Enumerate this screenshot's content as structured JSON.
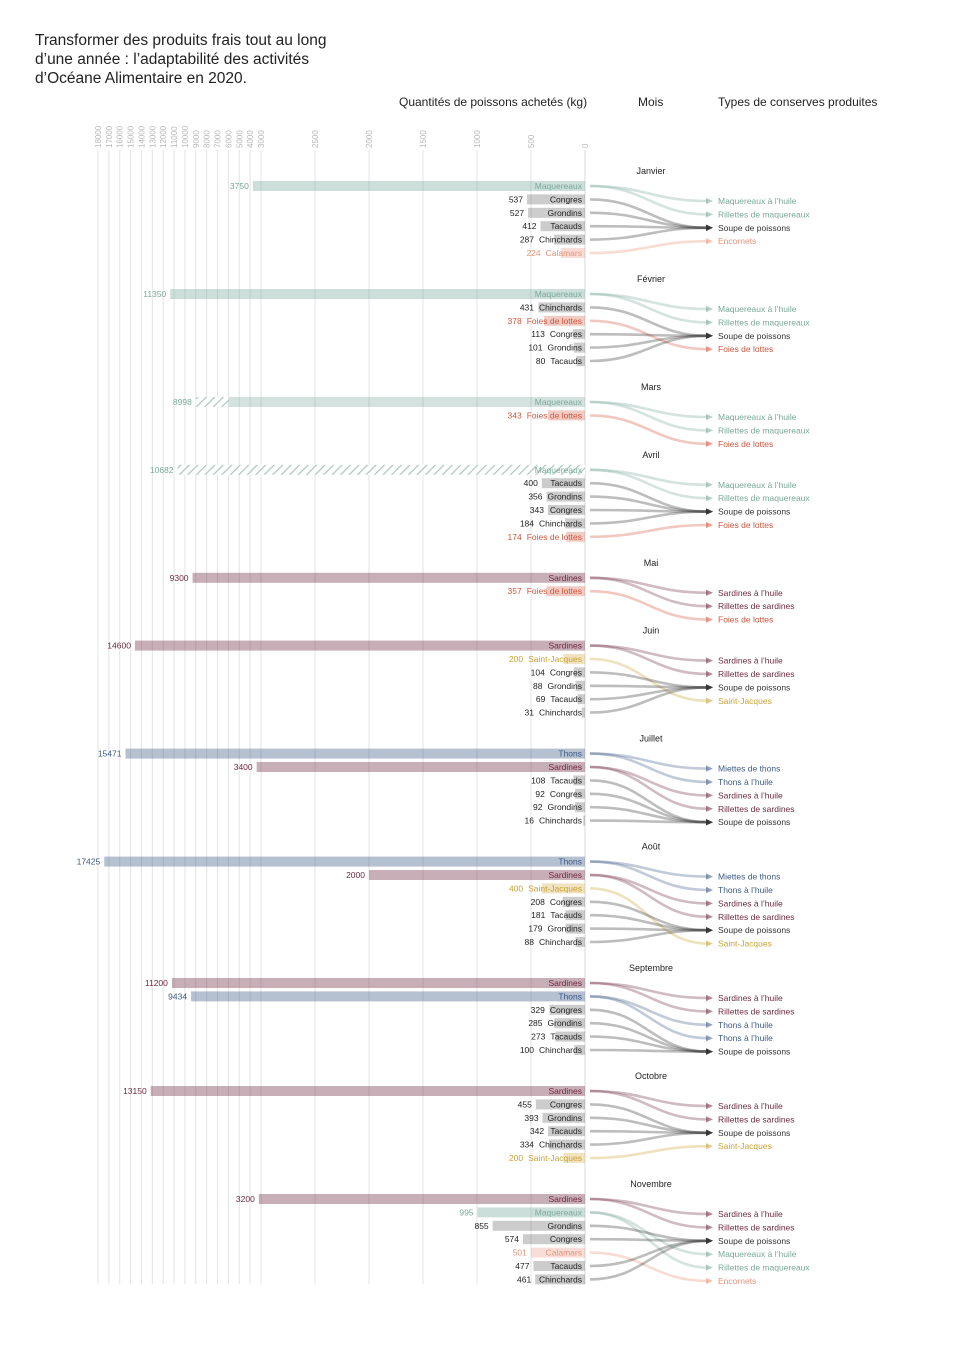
{
  "title": "Transformer des produits frais tout au long d’une année : l’adaptabilité des activités d’Océane Alimentaire en 2020.",
  "headers": {
    "quantities": "Quantités de poissons achetés (kg)",
    "month": "Mois",
    "products": "Types de conserves produites"
  },
  "colors": {
    "Maquereaux": "#7aa89a",
    "Sardines": "#6e2a40",
    "Thons": "#3d5a86",
    "Foies de lottes": "#d2553a",
    "Calamars": "#e8937a",
    "Saint-Jacques": "#c9a233",
    "other": "#333333"
  },
  "chart_data": {
    "type": "bar",
    "orientation": "horizontal-leftward",
    "xlabel": "Quantités de poissons achetés (kg)",
    "scale_note": "linear 0–3000 kg, compressed 3000–18000 kg",
    "ticks": [
      0,
      500,
      1000,
      1500,
      2000,
      2500,
      3000,
      4000,
      5000,
      6000,
      7000,
      8000,
      9000,
      10000,
      11000,
      12000,
      13000,
      14000,
      15000,
      16000,
      17000,
      18000
    ],
    "months": [
      {
        "name": "Janvier",
        "fish": [
          {
            "species": "Maquereaux",
            "value": 3750
          },
          {
            "species": "Congres",
            "value": 537
          },
          {
            "species": "Grondins",
            "value": 527
          },
          {
            "species": "Tacauds",
            "value": 412
          },
          {
            "species": "Chinchards",
            "value": 287
          },
          {
            "species": "Calamars",
            "value": 224
          }
        ],
        "products": [
          "Maquereaux à l’huile",
          "Rillettes de maquereaux",
          "Soupe de poissons",
          "Encornets"
        ],
        "links": [
          [
            0,
            0
          ],
          [
            0,
            1
          ],
          [
            1,
            2
          ],
          [
            2,
            2
          ],
          [
            3,
            2
          ],
          [
            4,
            2
          ],
          [
            5,
            3
          ]
        ]
      },
      {
        "name": "Février",
        "fish": [
          {
            "species": "Maquereaux",
            "value": 11350
          },
          {
            "species": "Chinchards",
            "value": 431
          },
          {
            "species": "Foies de lottes",
            "value": 378
          },
          {
            "species": "Congres",
            "value": 113
          },
          {
            "species": "Grondins",
            "value": 101
          },
          {
            "species": "Tacauds",
            "value": 80
          }
        ],
        "products": [
          "Maquereaux à l’huile",
          "Rillettes de maquereaux",
          "Soupe de poissons",
          "Foies de lottes"
        ],
        "links": [
          [
            0,
            0
          ],
          [
            0,
            1
          ],
          [
            1,
            2
          ],
          [
            2,
            3
          ],
          [
            3,
            2
          ],
          [
            4,
            2
          ],
          [
            5,
            2
          ]
        ]
      },
      {
        "name": "Mars",
        "fish": [
          {
            "species": "Maquereaux",
            "value": 8998,
            "hatched_from": 6000
          },
          {
            "species": "Foies de lottes",
            "value": 343
          }
        ],
        "products": [
          "Maquereaux à l’huile",
          "Rillettes de maquereaux",
          "Foies de lottes"
        ],
        "links": [
          [
            0,
            0
          ],
          [
            0,
            1
          ],
          [
            1,
            2
          ]
        ]
      },
      {
        "name": "Avril",
        "fish": [
          {
            "species": "Maquereaux",
            "value": 10682,
            "hatched_from": 0
          },
          {
            "species": "Tacauds",
            "value": 400
          },
          {
            "species": "Grondins",
            "value": 356
          },
          {
            "species": "Congres",
            "value": 343
          },
          {
            "species": "Chinchards",
            "value": 184
          },
          {
            "species": "Foies de lottes",
            "value": 174
          }
        ],
        "products": [
          "Maquereaux à l’huile",
          "Rillettes de maquereaux",
          "Soupe de poissons",
          "Foies de lottes"
        ],
        "links": [
          [
            0,
            0
          ],
          [
            0,
            1
          ],
          [
            1,
            2
          ],
          [
            2,
            2
          ],
          [
            3,
            2
          ],
          [
            4,
            2
          ],
          [
            5,
            3
          ]
        ]
      },
      {
        "name": "Mai",
        "fish": [
          {
            "species": "Sardines",
            "value": 9300
          },
          {
            "species": "Foies de lottes",
            "value": 357
          }
        ],
        "products": [
          "Sardines à l’huile",
          "Rillettes de sardines",
          "Foies de lottes"
        ],
        "links": [
          [
            0,
            0
          ],
          [
            0,
            1
          ],
          [
            1,
            2
          ]
        ]
      },
      {
        "name": "Juin",
        "fish": [
          {
            "species": "Sardines",
            "value": 14600
          },
          {
            "species": "Saint-Jacques",
            "value": 200
          },
          {
            "species": "Congres",
            "value": 104
          },
          {
            "species": "Grondins",
            "value": 88
          },
          {
            "species": "Tacauds",
            "value": 69
          },
          {
            "species": "Chinchards",
            "value": 31
          }
        ],
        "products": [
          "Sardines à l’huile",
          "Rillettes de sardines",
          "Soupe de poissons",
          "Saint-Jacques"
        ],
        "links": [
          [
            0,
            0
          ],
          [
            0,
            1
          ],
          [
            1,
            3
          ],
          [
            2,
            2
          ],
          [
            3,
            2
          ],
          [
            4,
            2
          ],
          [
            5,
            2
          ]
        ]
      },
      {
        "name": "Juillet",
        "fish": [
          {
            "species": "Thons",
            "value": 15471
          },
          {
            "species": "Sardines",
            "value": 3400
          },
          {
            "species": "Tacauds",
            "value": 108
          },
          {
            "species": "Congres",
            "value": 92
          },
          {
            "species": "Grondins",
            "value": 92
          },
          {
            "species": "Chinchards",
            "value": 16
          }
        ],
        "products": [
          "Miettes de thons",
          "Thons à l’huile",
          "Sardines à l’huile",
          "Rillettes de sardines",
          "Soupe de poissons"
        ],
        "links": [
          [
            0,
            0
          ],
          [
            0,
            1
          ],
          [
            1,
            2
          ],
          [
            1,
            3
          ],
          [
            2,
            4
          ],
          [
            3,
            4
          ],
          [
            4,
            4
          ],
          [
            5,
            4
          ]
        ]
      },
      {
        "name": "Août",
        "fish": [
          {
            "species": "Thons",
            "value": 17425
          },
          {
            "species": "Sardines",
            "value": 2000
          },
          {
            "species": "Saint-Jacques",
            "value": 400
          },
          {
            "species": "Congres",
            "value": 208
          },
          {
            "species": "Tacauds",
            "value": 181
          },
          {
            "species": "Grondins",
            "value": 179
          },
          {
            "species": "Chinchards",
            "value": 88
          }
        ],
        "products": [
          "Miettes de thons",
          "Thons à l’huile",
          "Sardines à l’huile",
          "Rillettes de sardines",
          "Soupe de poissons",
          "Saint-Jacques"
        ],
        "links": [
          [
            0,
            0
          ],
          [
            0,
            1
          ],
          [
            1,
            2
          ],
          [
            1,
            3
          ],
          [
            2,
            5
          ],
          [
            3,
            4
          ],
          [
            4,
            4
          ],
          [
            5,
            4
          ],
          [
            6,
            4
          ]
        ]
      },
      {
        "name": "Septembre",
        "fish": [
          {
            "species": "Sardines",
            "value": 11200
          },
          {
            "species": "Thons",
            "value": 9434
          },
          {
            "species": "Congres",
            "value": 329
          },
          {
            "species": "Grondins",
            "value": 285
          },
          {
            "species": "Tacauds",
            "value": 273
          },
          {
            "species": "Chinchards",
            "value": 100
          }
        ],
        "products": [
          "Sardines à l’huile",
          "Rillettes de sardines",
          "Thons à l’huile",
          "Thons à l’huile",
          "Soupe de poissons"
        ],
        "links": [
          [
            0,
            0
          ],
          [
            0,
            1
          ],
          [
            1,
            2
          ],
          [
            1,
            3
          ],
          [
            2,
            4
          ],
          [
            3,
            4
          ],
          [
            4,
            4
          ],
          [
            5,
            4
          ]
        ]
      },
      {
        "name": "Octobre",
        "fish": [
          {
            "species": "Sardines",
            "value": 13150
          },
          {
            "species": "Congres",
            "value": 455
          },
          {
            "species": "Grondins",
            "value": 393
          },
          {
            "species": "Tacauds",
            "value": 342
          },
          {
            "species": "Chinchards",
            "value": 334
          },
          {
            "species": "Saint-Jacques",
            "value": 200
          }
        ],
        "products": [
          "Sardines à l’huile",
          "Rillettes de sardines",
          "Soupe de poissons",
          "Saint-Jacques"
        ],
        "links": [
          [
            0,
            0
          ],
          [
            0,
            1
          ],
          [
            1,
            2
          ],
          [
            2,
            2
          ],
          [
            3,
            2
          ],
          [
            4,
            2
          ],
          [
            5,
            3
          ]
        ]
      },
      {
        "name": "Novembre",
        "fish": [
          {
            "species": "Sardines",
            "value": 3200
          },
          {
            "species": "Maquereaux",
            "value": 995
          },
          {
            "species": "Grondins",
            "value": 855
          },
          {
            "species": "Congres",
            "value": 574
          },
          {
            "species": "Calamars",
            "value": 501
          },
          {
            "species": "Tacauds",
            "value": 477
          },
          {
            "species": "Chinchards",
            "value": 461
          }
        ],
        "products": [
          "Sardines à l’huile",
          "Rillettes de sardines",
          "Soupe de poissons",
          "Maquereaux à l’huile",
          "Rillettes de maquereaux",
          "Encornets"
        ],
        "links": [
          [
            0,
            0
          ],
          [
            0,
            1
          ],
          [
            1,
            3
          ],
          [
            1,
            4
          ],
          [
            2,
            2
          ],
          [
            3,
            2
          ],
          [
            4,
            5
          ],
          [
            5,
            2
          ],
          [
            6,
            2
          ]
        ]
      }
    ]
  }
}
